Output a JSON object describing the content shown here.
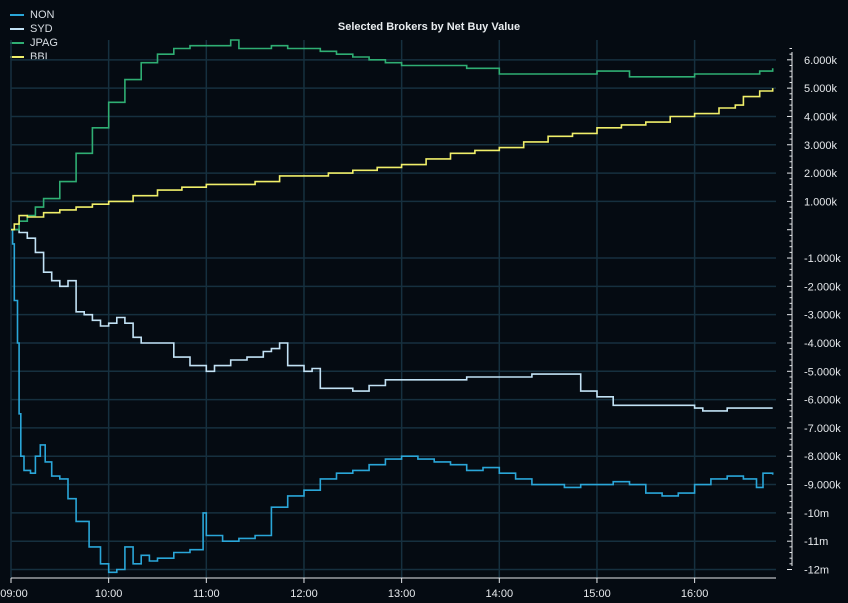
{
  "chart_data": {
    "type": "line",
    "title": "Selected Brokers by Net Buy Value",
    "xlabel": "",
    "ylabel": "",
    "legend_position": "top-left",
    "grid": true,
    "xlim": [
      "09:00",
      "16:50"
    ],
    "ylim": [
      -12300,
      6700
    ],
    "x_ticks": [
      "09:00",
      "10:00",
      "11:00",
      "12:00",
      "13:00",
      "14:00",
      "15:00",
      "16:00"
    ],
    "y_ticks": [
      {
        "value": 6000,
        "label": "6.000k"
      },
      {
        "value": 5000,
        "label": "5.000k"
      },
      {
        "value": 4000,
        "label": "4.000k"
      },
      {
        "value": 3000,
        "label": "3.000k"
      },
      {
        "value": 2000,
        "label": "2.000k"
      },
      {
        "value": 1000,
        "label": "1.000k"
      },
      {
        "value": -1000,
        "label": "-1.000k"
      },
      {
        "value": -2000,
        "label": "-2.000k"
      },
      {
        "value": -3000,
        "label": "-3.000k"
      },
      {
        "value": -4000,
        "label": "-4.000k"
      },
      {
        "value": -5000,
        "label": "-5.000k"
      },
      {
        "value": -6000,
        "label": "-6.000k"
      },
      {
        "value": -7000,
        "label": "-7.000k"
      },
      {
        "value": -8000,
        "label": "-8.000k"
      },
      {
        "value": -9000,
        "label": "-9.000k"
      },
      {
        "value": -10000,
        "label": "-10m"
      },
      {
        "value": -11000,
        "label": "-11m"
      },
      {
        "value": -12000,
        "label": "-12m"
      }
    ],
    "series": [
      {
        "name": "NON",
        "color": "#2aa6d8",
        "points": [
          [
            "09:00",
            0
          ],
          [
            "09:01",
            -500
          ],
          [
            "09:02",
            -2500
          ],
          [
            "09:04",
            -4000
          ],
          [
            "09:05",
            -6500
          ],
          [
            "09:06",
            -8000
          ],
          [
            "09:08",
            -8500
          ],
          [
            "09:12",
            -8600
          ],
          [
            "09:15",
            -8000
          ],
          [
            "09:18",
            -7600
          ],
          [
            "09:21",
            -8200
          ],
          [
            "09:25",
            -8700
          ],
          [
            "09:30",
            -8800
          ],
          [
            "09:35",
            -9500
          ],
          [
            "09:40",
            -10300
          ],
          [
            "09:48",
            -11200
          ],
          [
            "09:55",
            -11800
          ],
          [
            "10:00",
            -12100
          ],
          [
            "10:05",
            -12000
          ],
          [
            "10:10",
            -11200
          ],
          [
            "10:15",
            -11800
          ],
          [
            "10:20",
            -11500
          ],
          [
            "10:25",
            -11700
          ],
          [
            "10:30",
            -11600
          ],
          [
            "10:40",
            -11400
          ],
          [
            "10:50",
            -11300
          ],
          [
            "10:58",
            -10000
          ],
          [
            "11:00",
            -10800
          ],
          [
            "11:10",
            -11000
          ],
          [
            "11:20",
            -10900
          ],
          [
            "11:30",
            -10800
          ],
          [
            "11:40",
            -9800
          ],
          [
            "11:50",
            -9400
          ],
          [
            "12:00",
            -9200
          ],
          [
            "12:10",
            -8800
          ],
          [
            "12:20",
            -8600
          ],
          [
            "12:30",
            -8500
          ],
          [
            "12:40",
            -8300
          ],
          [
            "12:50",
            -8100
          ],
          [
            "13:00",
            -8000
          ],
          [
            "13:10",
            -8100
          ],
          [
            "13:20",
            -8200
          ],
          [
            "13:30",
            -8300
          ],
          [
            "13:40",
            -8500
          ],
          [
            "13:50",
            -8400
          ],
          [
            "14:00",
            -8600
          ],
          [
            "14:10",
            -8800
          ],
          [
            "14:20",
            -9000
          ],
          [
            "14:30",
            -9000
          ],
          [
            "14:40",
            -9100
          ],
          [
            "14:50",
            -9000
          ],
          [
            "15:00",
            -9000
          ],
          [
            "15:10",
            -8900
          ],
          [
            "15:20",
            -9000
          ],
          [
            "15:30",
            -9300
          ],
          [
            "15:40",
            -9400
          ],
          [
            "15:50",
            -9300
          ],
          [
            "16:00",
            -9000
          ],
          [
            "16:10",
            -8800
          ],
          [
            "16:20",
            -8700
          ],
          [
            "16:30",
            -8800
          ],
          [
            "16:38",
            -9100
          ],
          [
            "16:42",
            -8600
          ],
          [
            "16:48",
            -8650
          ]
        ]
      },
      {
        "name": "SYD",
        "color": "#c2e2f5",
        "points": [
          [
            "09:00",
            0
          ],
          [
            "09:05",
            -100
          ],
          [
            "09:10",
            -300
          ],
          [
            "09:15",
            -800
          ],
          [
            "09:20",
            -1500
          ],
          [
            "09:25",
            -1800
          ],
          [
            "09:30",
            -2000
          ],
          [
            "09:35",
            -1800
          ],
          [
            "09:40",
            -2900
          ],
          [
            "09:45",
            -3000
          ],
          [
            "09:50",
            -3200
          ],
          [
            "09:55",
            -3400
          ],
          [
            "10:00",
            -3300
          ],
          [
            "10:05",
            -3100
          ],
          [
            "10:10",
            -3300
          ],
          [
            "10:15",
            -3800
          ],
          [
            "10:20",
            -4000
          ],
          [
            "10:30",
            -4000
          ],
          [
            "10:40",
            -4500
          ],
          [
            "10:50",
            -4800
          ],
          [
            "11:00",
            -5000
          ],
          [
            "11:05",
            -4800
          ],
          [
            "11:15",
            -4600
          ],
          [
            "11:25",
            -4500
          ],
          [
            "11:35",
            -4300
          ],
          [
            "11:40",
            -4200
          ],
          [
            "11:45",
            -4000
          ],
          [
            "11:50",
            -4800
          ],
          [
            "12:00",
            -5000
          ],
          [
            "12:05",
            -4900
          ],
          [
            "12:10",
            -5600
          ],
          [
            "12:20",
            -5600
          ],
          [
            "12:30",
            -5700
          ],
          [
            "12:40",
            -5500
          ],
          [
            "12:50",
            -5300
          ],
          [
            "13:00",
            -5300
          ],
          [
            "13:20",
            -5300
          ],
          [
            "13:40",
            -5200
          ],
          [
            "14:00",
            -5200
          ],
          [
            "14:20",
            -5100
          ],
          [
            "14:40",
            -5100
          ],
          [
            "14:50",
            -5700
          ],
          [
            "15:00",
            -5900
          ],
          [
            "15:10",
            -6200
          ],
          [
            "15:30",
            -6200
          ],
          [
            "15:50",
            -6200
          ],
          [
            "16:00",
            -6300
          ],
          [
            "16:05",
            -6400
          ],
          [
            "16:20",
            -6300
          ],
          [
            "16:35",
            -6300
          ],
          [
            "16:48",
            -6300
          ]
        ]
      },
      {
        "name": "JPAG",
        "color": "#2fae73",
        "points": [
          [
            "09:00",
            0
          ],
          [
            "09:05",
            300
          ],
          [
            "09:10",
            500
          ],
          [
            "09:15",
            800
          ],
          [
            "09:20",
            1100
          ],
          [
            "09:30",
            1700
          ],
          [
            "09:40",
            2700
          ],
          [
            "09:50",
            3600
          ],
          [
            "10:00",
            4500
          ],
          [
            "10:10",
            5300
          ],
          [
            "10:20",
            5900
          ],
          [
            "10:30",
            6200
          ],
          [
            "10:40",
            6400
          ],
          [
            "10:50",
            6500
          ],
          [
            "11:00",
            6500
          ],
          [
            "11:10",
            6500
          ],
          [
            "11:15",
            6700
          ],
          [
            "11:20",
            6400
          ],
          [
            "11:30",
            6400
          ],
          [
            "11:40",
            6500
          ],
          [
            "11:50",
            6400
          ],
          [
            "12:00",
            6400
          ],
          [
            "12:10",
            6300
          ],
          [
            "12:20",
            6200
          ],
          [
            "12:30",
            6100
          ],
          [
            "12:40",
            6000
          ],
          [
            "12:50",
            5900
          ],
          [
            "13:00",
            5800
          ],
          [
            "13:20",
            5800
          ],
          [
            "13:40",
            5700
          ],
          [
            "14:00",
            5500
          ],
          [
            "14:20",
            5500
          ],
          [
            "14:40",
            5500
          ],
          [
            "15:00",
            5600
          ],
          [
            "15:20",
            5400
          ],
          [
            "15:40",
            5400
          ],
          [
            "16:00",
            5500
          ],
          [
            "16:20",
            5500
          ],
          [
            "16:40",
            5600
          ],
          [
            "16:48",
            5700
          ]
        ]
      },
      {
        "name": "BBI",
        "color": "#f0ef6a",
        "points": [
          [
            "09:00",
            0
          ],
          [
            "09:02",
            200
          ],
          [
            "09:05",
            500
          ],
          [
            "09:10",
            450
          ],
          [
            "09:20",
            600
          ],
          [
            "09:30",
            700
          ],
          [
            "09:40",
            800
          ],
          [
            "09:50",
            900
          ],
          [
            "10:00",
            1000
          ],
          [
            "10:15",
            1200
          ],
          [
            "10:30",
            1400
          ],
          [
            "10:45",
            1500
          ],
          [
            "11:00",
            1600
          ],
          [
            "11:15",
            1600
          ],
          [
            "11:30",
            1700
          ],
          [
            "11:45",
            1900
          ],
          [
            "12:00",
            1900
          ],
          [
            "12:15",
            2000
          ],
          [
            "12:30",
            2100
          ],
          [
            "12:45",
            2200
          ],
          [
            "13:00",
            2300
          ],
          [
            "13:15",
            2500
          ],
          [
            "13:30",
            2700
          ],
          [
            "13:45",
            2800
          ],
          [
            "14:00",
            2900
          ],
          [
            "14:15",
            3100
          ],
          [
            "14:30",
            3300
          ],
          [
            "14:45",
            3400
          ],
          [
            "15:00",
            3600
          ],
          [
            "15:15",
            3700
          ],
          [
            "15:30",
            3800
          ],
          [
            "15:45",
            4000
          ],
          [
            "16:00",
            4100
          ],
          [
            "16:15",
            4300
          ],
          [
            "16:25",
            4400
          ],
          [
            "16:30",
            4700
          ],
          [
            "16:40",
            4900
          ],
          [
            "16:48",
            5000
          ]
        ]
      }
    ]
  }
}
